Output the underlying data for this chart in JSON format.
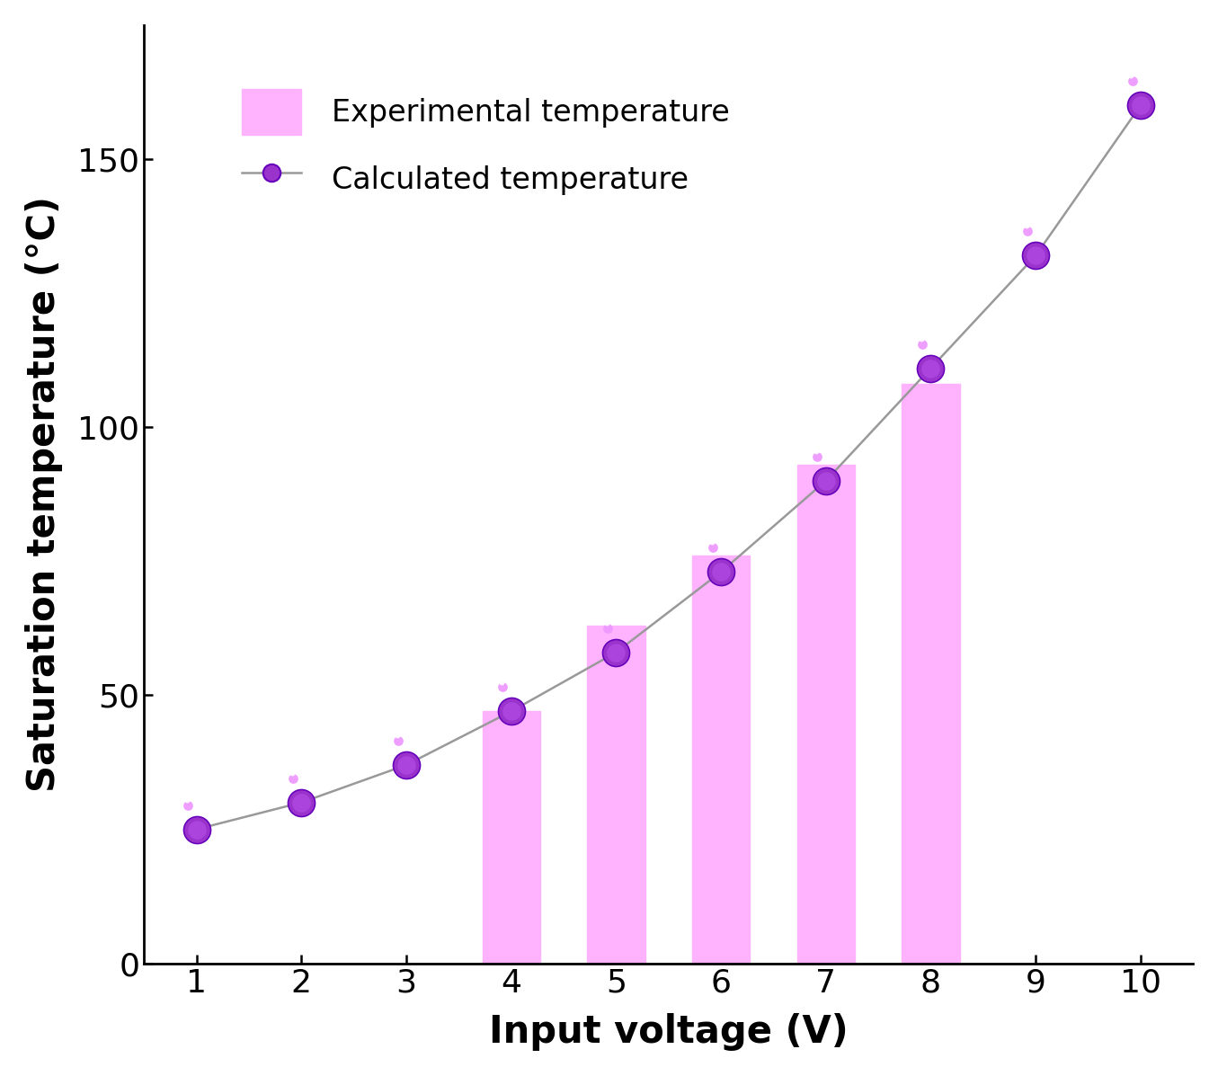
{
  "bar_x": [
    4,
    5,
    6,
    7,
    8
  ],
  "bar_heights": [
    47,
    63,
    76,
    93,
    108
  ],
  "bar_color": "#FFB3FF",
  "line_x": [
    1,
    2,
    3,
    4,
    5,
    6,
    7,
    8,
    9,
    10
  ],
  "line_y": [
    25,
    30,
    37,
    47,
    58,
    73,
    90,
    111,
    132,
    160
  ],
  "line_color": "#999999",
  "marker_dark": "#6600BB",
  "marker_mid": "#9933CC",
  "marker_light": "#DD88FF",
  "xlabel": "Input voltage (V)",
  "ylabel": "Saturation temperature (°C)",
  "xlim": [
    0.5,
    10.5
  ],
  "ylim": [
    0,
    175
  ],
  "xticks": [
    1,
    2,
    3,
    4,
    5,
    6,
    7,
    8,
    9,
    10
  ],
  "yticks": [
    0,
    50,
    100,
    150
  ],
  "legend_bar_label": "Experimental temperature",
  "legend_line_label": "Calculated temperature",
  "xlabel_fontsize": 30,
  "ylabel_fontsize": 30,
  "tick_fontsize": 26,
  "legend_fontsize": 24,
  "bar_width": 0.55
}
